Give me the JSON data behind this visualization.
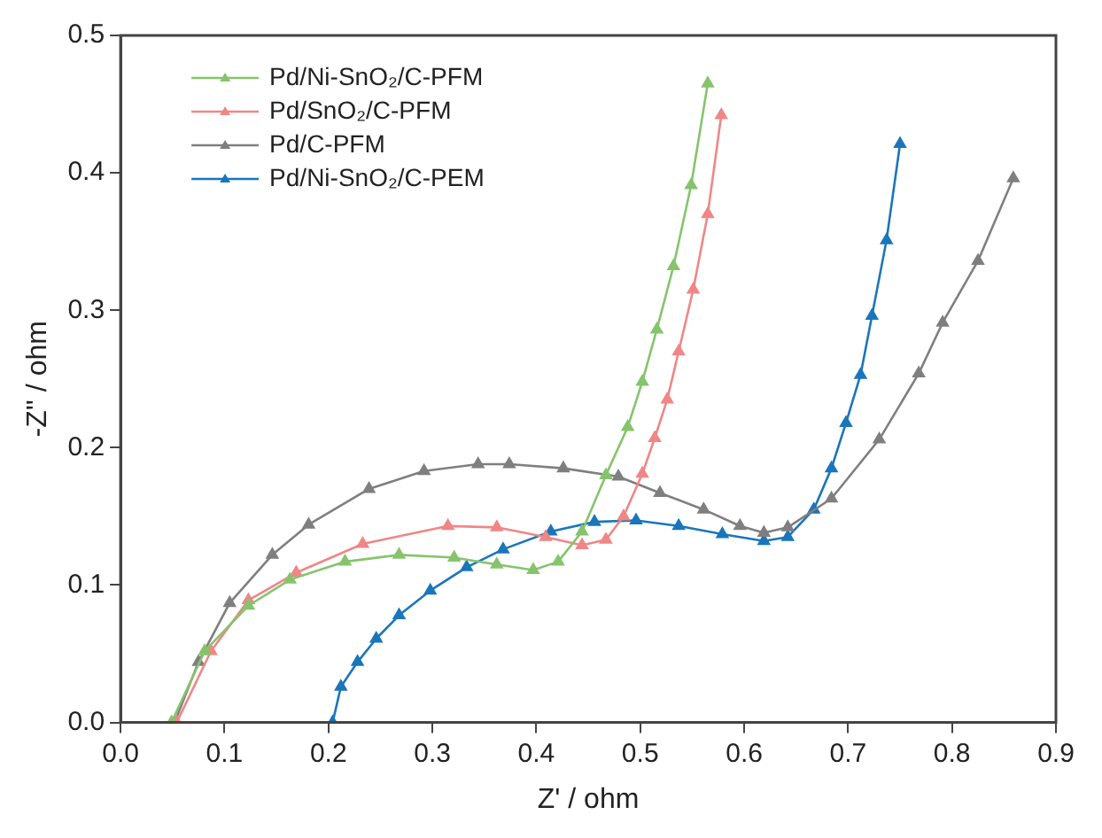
{
  "chart_data": {
    "type": "line",
    "xlabel": "Z' / ohm",
    "ylabel": "-Z'' / ohm",
    "xlim": [
      0,
      0.9
    ],
    "ylim": [
      0,
      0.5
    ],
    "xticks": [
      {
        "value": 0,
        "label": "0.0"
      },
      {
        "value": 0.1,
        "label": "0.1"
      },
      {
        "value": 0.2,
        "label": "0.2"
      },
      {
        "value": 0.3,
        "label": "0.3"
      },
      {
        "value": 0.4,
        "label": "0.4"
      },
      {
        "value": 0.5,
        "label": "0.5"
      },
      {
        "value": 0.6,
        "label": "0.6"
      },
      {
        "value": 0.7,
        "label": "0.7"
      },
      {
        "value": 0.8,
        "label": "0.8"
      },
      {
        "value": 0.9,
        "label": "0.9"
      }
    ],
    "yticks": [
      {
        "value": 0,
        "label": "0.0"
      },
      {
        "value": 0.1,
        "label": "0.1"
      },
      {
        "value": 0.2,
        "label": "0.2"
      },
      {
        "value": 0.3,
        "label": "0.3"
      },
      {
        "value": 0.4,
        "label": "0.4"
      },
      {
        "value": 0.5,
        "label": "0.5"
      }
    ],
    "grid": false,
    "legend": "top left",
    "marker": "triangle",
    "line_style": "solid",
    "series": [
      {
        "name": "Pd/Ni-SnO₂/C-PFM",
        "color": "#86c46c",
        "x": [
          0.049,
          0.081,
          0.123,
          0.163,
          0.216,
          0.268,
          0.321,
          0.362,
          0.397,
          0.421,
          0.444,
          0.467,
          0.488,
          0.502,
          0.516,
          0.532,
          0.549,
          0.565
        ],
        "values": [
          0,
          0.052,
          0.085,
          0.104,
          0.117,
          0.122,
          0.12,
          0.115,
          0.111,
          0.117,
          0.139,
          0.18,
          0.215,
          0.248,
          0.286,
          0.332,
          0.391,
          0.465
        ]
      },
      {
        "name": "Pd/SnO₂/C-PFM",
        "color": "#f08686",
        "x": [
          0.054,
          0.087,
          0.123,
          0.169,
          0.233,
          0.315,
          0.362,
          0.409,
          0.444,
          0.467,
          0.484,
          0.502,
          0.514,
          0.526,
          0.537,
          0.551,
          0.565,
          0.578
        ],
        "values": [
          0,
          0.052,
          0.089,
          0.109,
          0.13,
          0.143,
          0.142,
          0.135,
          0.129,
          0.133,
          0.15,
          0.181,
          0.207,
          0.235,
          0.27,
          0.315,
          0.37,
          0.442
        ]
      },
      {
        "name": "Pd/C-PFM",
        "color": "#7f7f7f",
        "x": [
          0.052,
          0.075,
          0.105,
          0.146,
          0.181,
          0.239,
          0.292,
          0.344,
          0.374,
          0.426,
          0.479,
          0.519,
          0.561,
          0.596,
          0.619,
          0.642,
          0.684,
          0.73,
          0.768,
          0.791,
          0.825,
          0.859
        ],
        "values": [
          0,
          0.044,
          0.087,
          0.122,
          0.144,
          0.17,
          0.183,
          0.188,
          0.188,
          0.185,
          0.179,
          0.167,
          0.155,
          0.143,
          0.138,
          0.142,
          0.163,
          0.206,
          0.254,
          0.291,
          0.336,
          0.396
        ]
      },
      {
        "name": "Pd/Ni-SnO₂/C-PEM",
        "color": "#1a76bb",
        "x": [
          0.204,
          0.212,
          0.228,
          0.246,
          0.268,
          0.298,
          0.333,
          0.368,
          0.414,
          0.456,
          0.496,
          0.537,
          0.579,
          0.619,
          0.642,
          0.667,
          0.684,
          0.698,
          0.712,
          0.723,
          0.737,
          0.75
        ],
        "values": [
          0,
          0.026,
          0.044,
          0.061,
          0.078,
          0.096,
          0.113,
          0.126,
          0.139,
          0.146,
          0.147,
          0.143,
          0.137,
          0.132,
          0.135,
          0.155,
          0.185,
          0.218,
          0.253,
          0.296,
          0.351,
          0.421
        ]
      }
    ]
  }
}
